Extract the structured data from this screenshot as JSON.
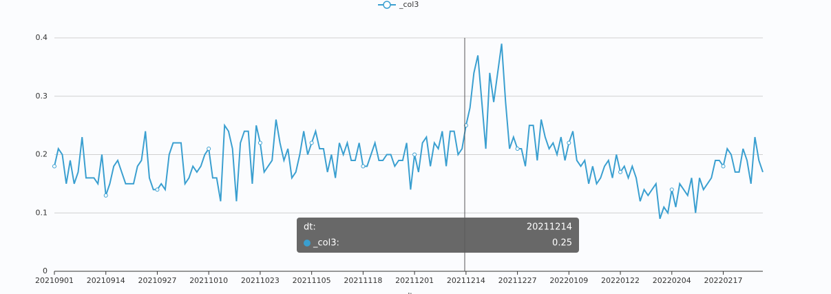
{
  "chart_data": {
    "type": "line",
    "x_label": "dt",
    "categories": [
      "20210901",
      null,
      null,
      null,
      null,
      null,
      null,
      null,
      null,
      null,
      null,
      null,
      null,
      "20210914",
      null,
      null,
      null,
      null,
      null,
      null,
      null,
      null,
      null,
      null,
      null,
      null,
      "20210927",
      null,
      null,
      null,
      null,
      null,
      null,
      null,
      null,
      null,
      null,
      null,
      null,
      "20211010",
      null,
      null,
      null,
      null,
      null,
      null,
      null,
      null,
      null,
      null,
      null,
      null,
      "20211023",
      null,
      null,
      null,
      null,
      null,
      null,
      null,
      null,
      null,
      null,
      null,
      null,
      "20211105",
      null,
      null,
      null,
      null,
      null,
      null,
      null,
      null,
      null,
      null,
      null,
      null,
      "20211118",
      null,
      null,
      null,
      null,
      null,
      null,
      null,
      null,
      null,
      null,
      null,
      null,
      "20211201",
      null,
      null,
      null,
      null,
      null,
      null,
      null,
      null,
      null,
      null,
      null,
      null,
      "20211214",
      null,
      null,
      null,
      null,
      null,
      null,
      null,
      null,
      null,
      null,
      null,
      null,
      "20211227",
      null,
      null,
      null,
      null,
      null,
      null,
      null,
      null,
      null,
      null,
      null,
      null,
      "20220109",
      null,
      null,
      null,
      null,
      null,
      null,
      null,
      null,
      null,
      null,
      null,
      null,
      "20220122",
      null,
      null,
      null,
      null,
      null,
      null,
      null,
      null,
      null,
      null,
      null,
      null,
      "20220204",
      null,
      null,
      null,
      null,
      null,
      null,
      null,
      null,
      null,
      null,
      null,
      null,
      "20220217",
      null,
      null,
      null,
      null,
      null,
      null,
      null,
      null,
      null,
      null
    ],
    "series": [
      {
        "name": "_col3",
        "color": "#3a9fd0",
        "values": [
          0.18,
          0.21,
          0.2,
          0.15,
          0.19,
          0.15,
          0.17,
          0.23,
          0.16,
          0.16,
          0.16,
          0.15,
          0.2,
          0.13,
          0.15,
          0.18,
          0.19,
          0.17,
          0.15,
          0.15,
          0.15,
          0.18,
          0.19,
          0.24,
          0.16,
          0.14,
          0.14,
          0.15,
          0.14,
          0.2,
          0.22,
          0.22,
          0.22,
          0.15,
          0.16,
          0.18,
          0.17,
          0.18,
          0.2,
          0.21,
          0.16,
          0.16,
          0.12,
          0.25,
          0.24,
          0.21,
          0.12,
          0.22,
          0.24,
          0.24,
          0.15,
          0.25,
          0.22,
          0.17,
          0.18,
          0.19,
          0.26,
          0.22,
          0.19,
          0.21,
          0.16,
          0.17,
          0.2,
          0.24,
          0.2,
          0.22,
          0.24,
          0.21,
          0.21,
          0.17,
          0.2,
          0.16,
          0.22,
          0.2,
          0.22,
          0.19,
          0.19,
          0.22,
          0.18,
          0.18,
          0.2,
          0.22,
          0.19,
          0.19,
          0.2,
          0.2,
          0.18,
          0.19,
          0.19,
          0.22,
          0.14,
          0.2,
          0.17,
          0.22,
          0.23,
          0.18,
          0.22,
          0.21,
          0.24,
          0.18,
          0.24,
          0.24,
          0.2,
          0.21,
          0.25,
          0.28,
          0.34,
          0.37,
          0.29,
          0.21,
          0.34,
          0.29,
          0.34,
          0.39,
          0.29,
          0.21,
          0.23,
          0.21,
          0.21,
          0.18,
          0.25,
          0.25,
          0.19,
          0.26,
          0.23,
          0.21,
          0.22,
          0.2,
          0.23,
          0.19,
          0.22,
          0.24,
          0.19,
          0.18,
          0.19,
          0.15,
          0.18,
          0.15,
          0.16,
          0.18,
          0.19,
          0.16,
          0.2,
          0.17,
          0.18,
          0.16,
          0.18,
          0.16,
          0.12,
          0.14,
          0.13,
          0.14,
          0.15,
          0.09,
          0.11,
          0.1,
          0.14,
          0.11,
          0.15,
          0.14,
          0.13,
          0.16,
          0.1,
          0.16,
          0.14,
          0.15,
          0.16,
          0.19,
          0.19,
          0.18,
          0.21,
          0.2,
          0.17,
          0.17,
          0.21,
          0.19,
          0.15,
          0.23,
          0.19,
          0.17
        ]
      }
    ],
    "ylim": [
      0,
      0.4
    ],
    "yticks": [
      0,
      0.1,
      0.2,
      0.3,
      0.4
    ],
    "grid": true,
    "tooltip": {
      "x_label": "dt:",
      "series_label": "_col3:"
    }
  }
}
